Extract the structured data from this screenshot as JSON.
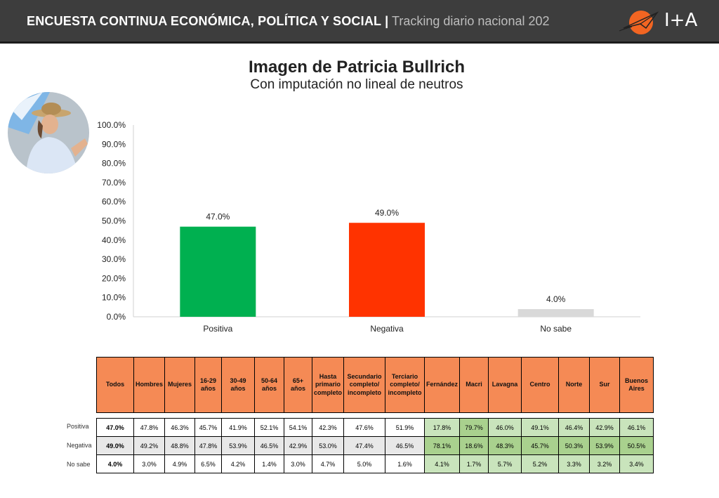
{
  "header": {
    "title": "ENCUESTA CONTINUA ECONÓMICA, POLÍTICA Y SOCIAL |",
    "subtitle": "Tracking diario nacional 202",
    "logo_text": "I+A"
  },
  "colors": {
    "positiva": "#00b050",
    "negativa": "#ff3300",
    "no_sabe": "#d9d9d9",
    "header_bg": "#3d3d3d",
    "table_header": "#f58a55"
  },
  "chart_data": {
    "type": "bar",
    "title": "Imagen de Patricia Bullrich",
    "subtitle": "Con imputación no lineal de neutros",
    "categories": [
      "Positiva",
      "Negativa",
      "No sabe"
    ],
    "values": [
      47.0,
      49.0,
      4.0
    ],
    "data_labels": [
      "47.0%",
      "49.0%",
      "4.0%"
    ],
    "ylim": [
      0,
      100
    ],
    "yticks": [
      0,
      10,
      20,
      30,
      40,
      50,
      60,
      70,
      80,
      90,
      100
    ],
    "ytick_labels": [
      "0.0%",
      "10.0%",
      "20.0%",
      "30.0%",
      "40.0%",
      "50.0%",
      "60.0%",
      "70.0%",
      "80.0%",
      "90.0%",
      "100.0%"
    ],
    "xlabel": "",
    "ylabel": ""
  },
  "table": {
    "headers": [
      "Todos",
      "Hombres",
      "Mujeres",
      "16-29 años",
      "30-49 años",
      "50-64 años",
      "65+ años",
      "Hasta primario completo",
      "Secundario completo/ incompleto",
      "Terciario completo/ incompleto",
      "Fernández",
      "Macri",
      "Lavagna",
      "Centro",
      "Norte",
      "Sur",
      "Buenos Aires"
    ],
    "rows": [
      {
        "label": "Positiva",
        "values": [
          "47.0%",
          "47.8%",
          "46.3%",
          "45.7%",
          "41.9%",
          "52.1%",
          "54.1%",
          "42.3%",
          "47.6%",
          "51.9%",
          "17.8%",
          "79.7%",
          "46.0%",
          "49.1%",
          "46.4%",
          "42.9%",
          "46.1%"
        ]
      },
      {
        "label": "Negativa",
        "values": [
          "49.0%",
          "49.2%",
          "48.8%",
          "47.8%",
          "53.9%",
          "46.5%",
          "42.9%",
          "53.0%",
          "47.4%",
          "46.5%",
          "78.1%",
          "18.6%",
          "48.3%",
          "45.7%",
          "50.3%",
          "53.9%",
          "50.5%"
        ]
      },
      {
        "label": "No sabe",
        "values": [
          "4.0%",
          "3.0%",
          "4.9%",
          "6.5%",
          "4.2%",
          "1.4%",
          "3.0%",
          "4.7%",
          "5.0%",
          "1.6%",
          "4.1%",
          "1.7%",
          "5.7%",
          "5.2%",
          "3.3%",
          "3.2%",
          "3.4%"
        ]
      }
    ]
  }
}
